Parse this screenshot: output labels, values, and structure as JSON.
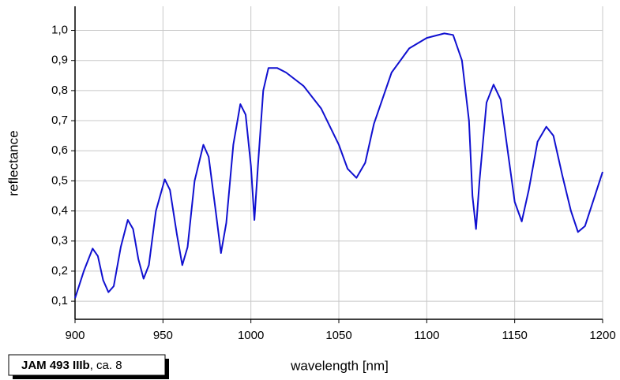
{
  "chart_data": {
    "type": "line",
    "xlabel": "wavelength [nm]",
    "ylabel": "reflectance",
    "xlim": [
      900,
      1200
    ],
    "ylim": [
      0.04,
      1.08
    ],
    "xticks": [
      900,
      950,
      1000,
      1050,
      1100,
      1150,
      1200
    ],
    "yticks": [
      {
        "value": 0.1,
        "label": "0,1"
      },
      {
        "value": 0.2,
        "label": "0,2"
      },
      {
        "value": 0.3,
        "label": "0,3"
      },
      {
        "value": 0.4,
        "label": "0,4"
      },
      {
        "value": 0.5,
        "label": "0,5"
      },
      {
        "value": 0.6,
        "label": "0,6"
      },
      {
        "value": 0.7,
        "label": "0,7"
      },
      {
        "value": 0.8,
        "label": "0,8"
      },
      {
        "value": 0.9,
        "label": "0,9"
      },
      {
        "value": 1.0,
        "label": "1,0"
      }
    ],
    "grid": true,
    "x": [
      900,
      905,
      910,
      913,
      916,
      919,
      922,
      926,
      930,
      933,
      936,
      939,
      942,
      946,
      951,
      954,
      958,
      961,
      964,
      968,
      973,
      976,
      980,
      983,
      986,
      990,
      994,
      997,
      1000,
      1002,
      1004,
      1007,
      1010,
      1015,
      1020,
      1030,
      1040,
      1050,
      1055,
      1060,
      1065,
      1070,
      1080,
      1090,
      1100,
      1110,
      1115,
      1120,
      1124,
      1126,
      1128,
      1130,
      1134,
      1138,
      1142,
      1146,
      1150,
      1154,
      1158,
      1163,
      1168,
      1172,
      1177,
      1182,
      1186,
      1190,
      1195,
      1200
    ],
    "series": [
      {
        "color": "#1010d0",
        "values": [
          0.11,
          0.2,
          0.275,
          0.25,
          0.17,
          0.13,
          0.15,
          0.28,
          0.37,
          0.34,
          0.24,
          0.175,
          0.22,
          0.4,
          0.505,
          0.47,
          0.32,
          0.22,
          0.28,
          0.5,
          0.62,
          0.58,
          0.4,
          0.26,
          0.36,
          0.62,
          0.755,
          0.72,
          0.55,
          0.37,
          0.55,
          0.8,
          0.875,
          0.875,
          0.86,
          0.815,
          0.74,
          0.62,
          0.54,
          0.51,
          0.56,
          0.69,
          0.86,
          0.94,
          0.975,
          0.99,
          0.985,
          0.9,
          0.7,
          0.45,
          0.34,
          0.5,
          0.76,
          0.82,
          0.77,
          0.6,
          0.43,
          0.365,
          0.47,
          0.63,
          0.68,
          0.65,
          0.52,
          0.4,
          0.33,
          0.35,
          0.44,
          0.53
        ]
      }
    ]
  },
  "label_box": {
    "bold": "JAM 493 IIIb",
    "text": ", ca. 8"
  }
}
